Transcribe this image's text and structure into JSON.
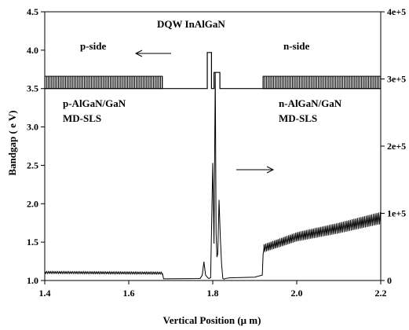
{
  "chart_data": {
    "type": "line",
    "xlabel": "Vertical Position (μ m)",
    "ylabel": "Bandgap ( e V)",
    "xlim": [
      1.4,
      2.2
    ],
    "ylim_left": [
      1.0,
      4.5
    ],
    "ylim_right": [
      0,
      400000
    ],
    "x_ticks": [
      "1.4",
      "1.6",
      "1.8",
      "2.0",
      "2.2"
    ],
    "y_left_ticks": [
      "1.0",
      "1.5",
      "2.0",
      "2.5",
      "3.0",
      "3.5",
      "4.0",
      "4.5"
    ],
    "y_right_ticks": [
      "0",
      "1e+5",
      "2e+5",
      "3e+5",
      "4e+5"
    ],
    "grid": false,
    "series": [
      {
        "axis": "left",
        "x": [
          1.4,
          1.68,
          1.68,
          1.787,
          1.787,
          1.797,
          1.797,
          1.803,
          1.803,
          1.817,
          1.817,
          1.823,
          1.823,
          1.92,
          1.92,
          2.2
        ],
        "y": [
          3.5,
          3.5,
          3.5,
          3.5,
          3.97,
          3.97,
          3.5,
          3.5,
          3.71,
          3.71,
          3.5,
          3.5,
          3.5,
          3.5,
          3.5,
          3.5
        ],
        "superlattice_bands": [
          {
            "x_start": 1.4,
            "x_end": 1.68,
            "y_low": 3.5,
            "y_high": 3.66
          },
          {
            "x_start": 1.92,
            "x_end": 2.2,
            "y_low": 3.5,
            "y_high": 3.66
          }
        ]
      },
      {
        "axis": "right",
        "x": [
          1.4,
          1.68,
          1.683,
          1.77,
          1.775,
          1.779,
          1.783,
          1.79,
          1.795,
          1.8,
          1.803,
          1.806,
          1.808,
          1.81,
          1.812,
          1.815,
          1.818,
          1.821,
          1.824,
          1.827,
          1.83,
          1.84,
          1.9,
          1.918,
          1.92,
          1.922,
          2.0,
          2.1,
          2.2
        ],
        "y": [
          12000,
          11000,
          2500,
          3000,
          8000,
          28000,
          8000,
          3000,
          4000,
          175000,
          55000,
          310000,
          70000,
          35000,
          40000,
          120000,
          65000,
          25000,
          3000,
          2000,
          3000,
          4000,
          5000,
          8000,
          40000,
          48000,
          65000,
          78000,
          93000
        ],
        "oscillation": [
          {
            "x_start": 1.4,
            "x_end": 1.68,
            "amplitude": 3000
          },
          {
            "x_start": 1.922,
            "x_end": 2.2,
            "amplitude_start": 12000,
            "amplitude_end": 18000
          }
        ]
      }
    ],
    "annotations": [
      {
        "text": "DQW InAlGaN"
      },
      {
        "text": "p-side"
      },
      {
        "text": "n-side"
      },
      {
        "text": "p-AlGaN/GaN"
      },
      {
        "text": "MD-SLS"
      },
      {
        "text": "n-AlGaN/GaN"
      },
      {
        "text": "MD-SLS"
      }
    ],
    "arrows": [
      {
        "direction": "left"
      },
      {
        "direction": "right"
      }
    ]
  }
}
